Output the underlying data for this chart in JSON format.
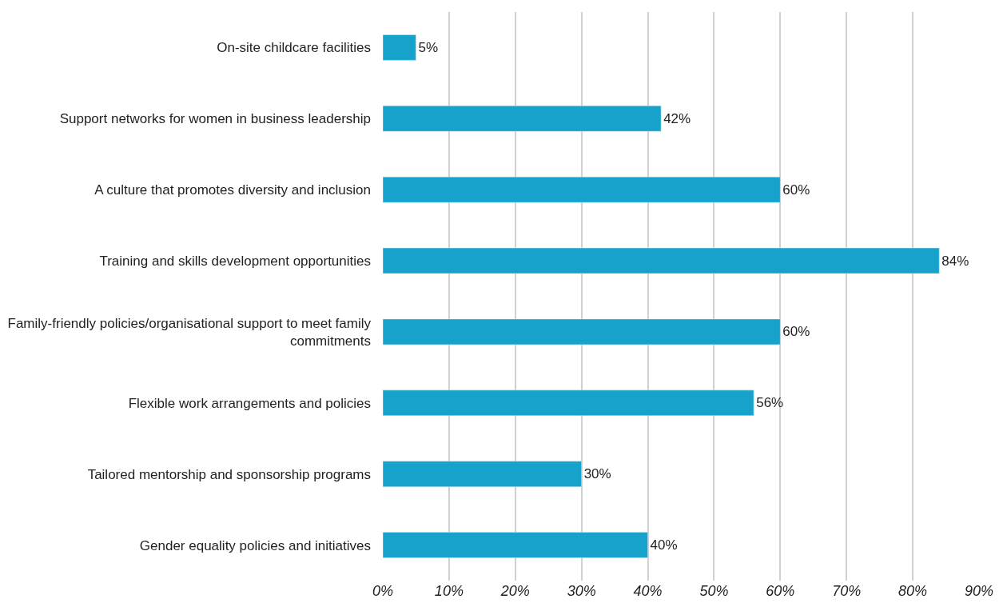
{
  "chart_data": {
    "type": "bar",
    "orientation": "horizontal",
    "categories": [
      "On-site childcare facilities",
      "Support networks for women in business leadership",
      "A culture that promotes diversity and inclusion",
      "Training and skills development opportunities",
      "Family-friendly policies/organisational support to meet family commitments",
      "Flexible work arrangements and policies",
      "Tailored mentorship and sponsorship programs",
      "Gender equality policies and initiatives"
    ],
    "values": [
      5,
      42,
      60,
      84,
      60,
      56,
      30,
      40
    ],
    "value_labels": [
      "5%",
      "42%",
      "60%",
      "84%",
      "60%",
      "56%",
      "30%",
      "40%"
    ],
    "color": "#17a2cb",
    "xlim": [
      0,
      90
    ],
    "xticks": [
      {
        "value": 0,
        "label": "0%"
      },
      {
        "value": 10,
        "label": "10%"
      },
      {
        "value": 20,
        "label": "20%"
      },
      {
        "value": 30,
        "label": "30%"
      },
      {
        "value": 40,
        "label": "40%"
      },
      {
        "value": 50,
        "label": "50%"
      },
      {
        "value": 60,
        "label": "60%"
      },
      {
        "value": 70,
        "label": "70%"
      },
      {
        "value": 80,
        "label": "80%"
      },
      {
        "value": 90,
        "label": "90%"
      }
    ],
    "grid": "x"
  }
}
